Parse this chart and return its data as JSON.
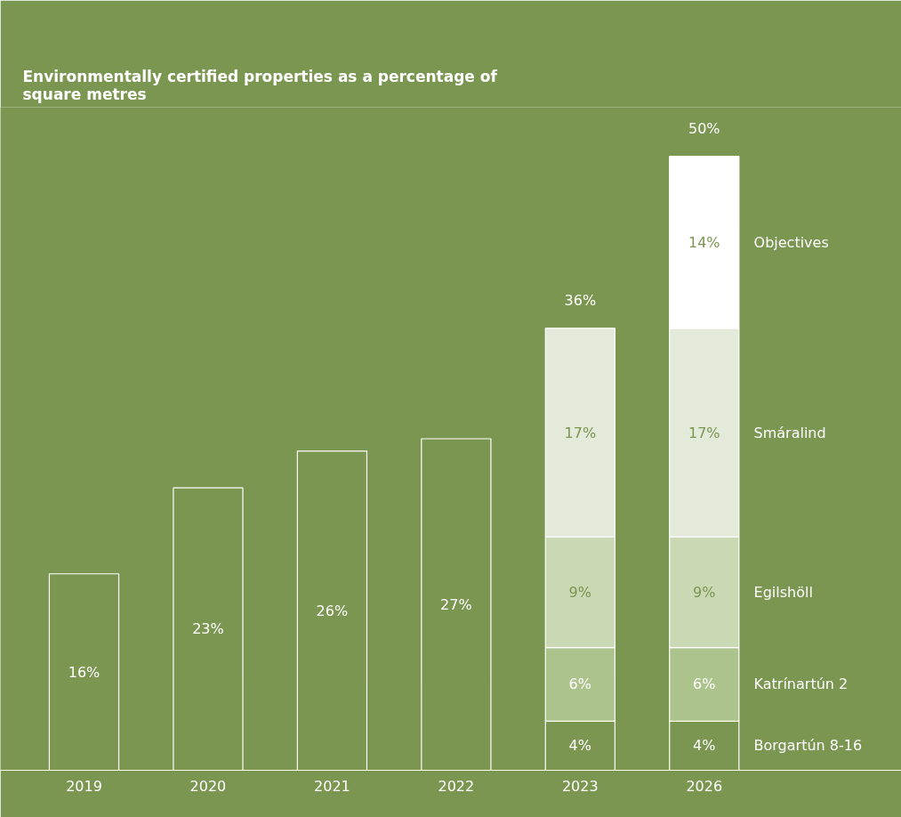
{
  "chart_data": {
    "type": "bar",
    "stacked": true,
    "title": "Environmentally certified properties as a percentage of\nsquare metres",
    "categories": [
      "2019",
      "2020",
      "2021",
      "2022",
      "2023",
      "2026"
    ],
    "series": [
      {
        "color": "#7a9650",
        "values": [
          16,
          23,
          26,
          27,
          null,
          null
        ],
        "value_labels": [
          "16%",
          "23%",
          "26%",
          "27%",
          null,
          null
        ]
      },
      {
        "name": "Borgartún 8-16",
        "color": "#7a9650",
        "values": [
          null,
          null,
          null,
          null,
          4,
          4
        ],
        "value_labels": [
          null,
          null,
          null,
          null,
          "4%",
          "4%"
        ]
      },
      {
        "name": "Katrínartún 2",
        "color": "#adc38c",
        "values": [
          null,
          null,
          null,
          null,
          6,
          6
        ],
        "value_labels": [
          null,
          null,
          null,
          null,
          "6%",
          "6%"
        ]
      },
      {
        "name": "Egilshöll",
        "color": "#cad8b4",
        "values": [
          null,
          null,
          null,
          null,
          9,
          9
        ],
        "value_labels": [
          null,
          null,
          null,
          null,
          "9%",
          "9%"
        ]
      },
      {
        "name": "Smáralind",
        "color": "#e3eada",
        "values": [
          null,
          null,
          null,
          null,
          17,
          17
        ],
        "value_labels": [
          null,
          null,
          null,
          null,
          "17%",
          "17%"
        ]
      },
      {
        "name": "Objectives",
        "color": "#ffffff",
        "values": [
          null,
          null,
          null,
          null,
          null,
          14
        ],
        "value_labels": [
          null,
          null,
          null,
          null,
          null,
          "14%"
        ]
      }
    ],
    "totals": [
      null,
      null,
      null,
      null,
      "36%",
      "50%"
    ],
    "legend": "right",
    "grid": false
  }
}
